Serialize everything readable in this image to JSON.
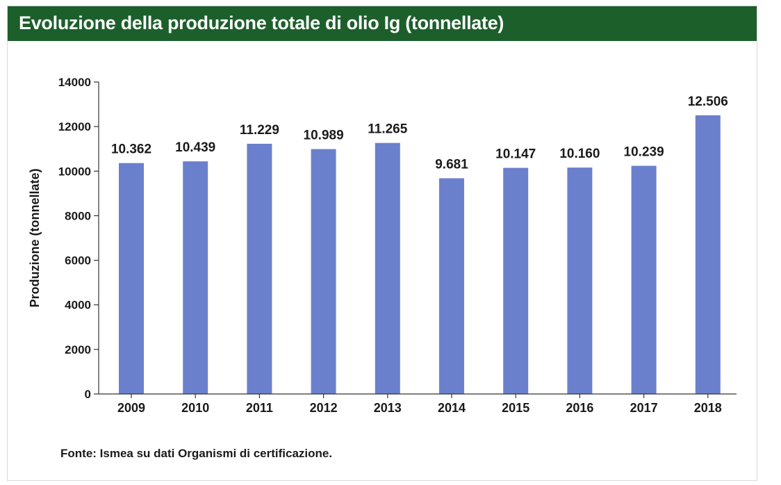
{
  "chart_data": {
    "type": "bar",
    "title": "Evoluzione della produzione totale di olio Ig (tonnellate)",
    "xlabel": "",
    "ylabel": "Produzione (tonnellate)",
    "categories": [
      "2009",
      "2010",
      "2011",
      "2012",
      "2013",
      "2014",
      "2015",
      "2016",
      "2017",
      "2018"
    ],
    "values": [
      10362,
      10439,
      11229,
      10989,
      11265,
      9681,
      10147,
      10160,
      10239,
      12506
    ],
    "data_labels": [
      "10.362",
      "10.439",
      "11.229",
      "10.989",
      "11.265",
      "9.681",
      "10.147",
      "10.160",
      "10.239",
      "12.506"
    ],
    "ylim": [
      0,
      14000
    ],
    "yticks": [
      0,
      2000,
      4000,
      6000,
      8000,
      10000,
      12000,
      14000
    ],
    "grid": false,
    "legend": "none",
    "bar_color": "#6b80cc"
  },
  "source_note": "Fonte: Ismea su dati Organismi di certificazione.",
  "colors": {
    "title_bar": "#1c5f2b",
    "title_text": "#ffffff",
    "axis": "#333333",
    "text": "#1a1a1a"
  }
}
